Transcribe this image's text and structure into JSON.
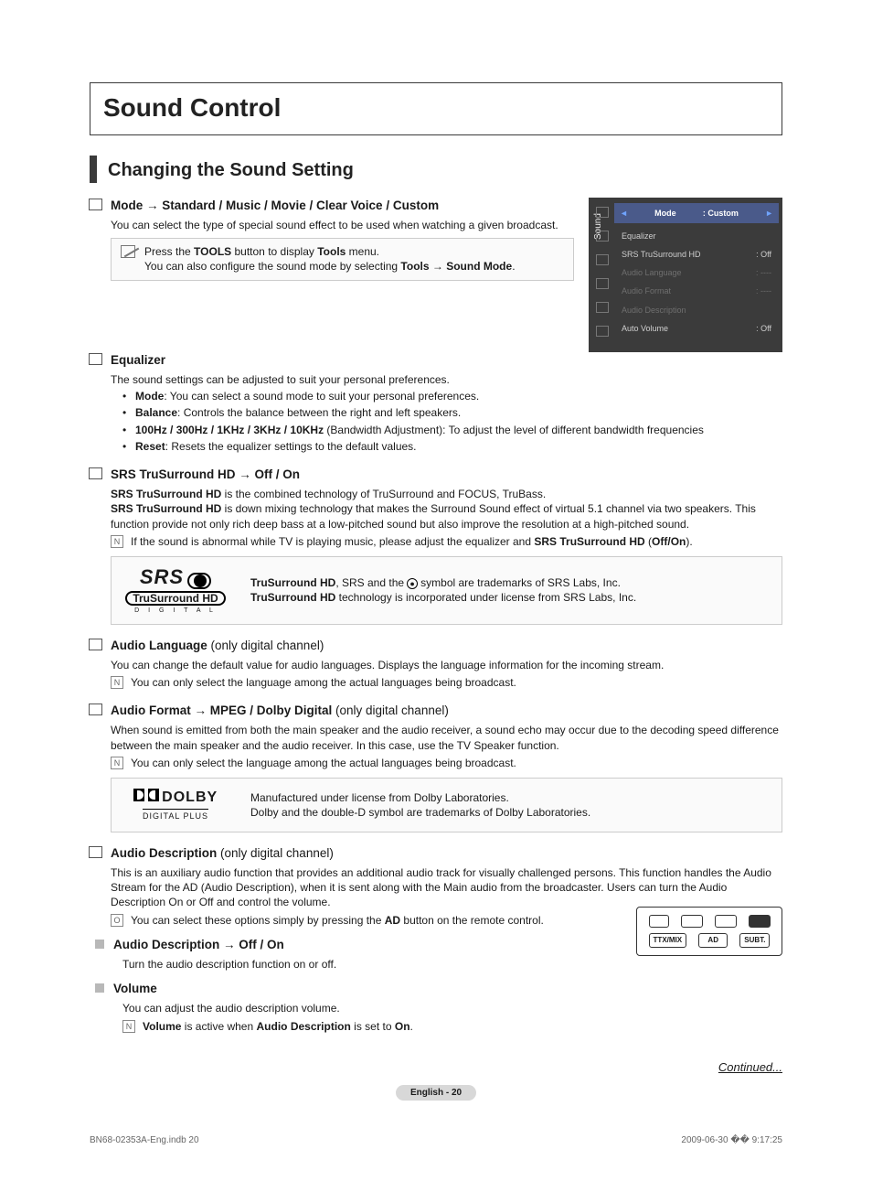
{
  "title": "Sound Control",
  "subtitle": "Changing the Sound Setting",
  "sections": {
    "mode": {
      "heading_bold": "Mode → Standard / Music / Movie / Clear Voice / Custom",
      "body": "You can select the type of special sound effect to be used when watching a given broadcast.",
      "tools_line1_pre": "Press the ",
      "tools_line1_bold": "TOOLS",
      "tools_line1_mid": " button to display ",
      "tools_line1_bold2": "Tools",
      "tools_line1_post": " menu.",
      "tools_line2_pre": "You can also configure the sound mode by selecting ",
      "tools_line2_bold": "Tools → Sound Mode",
      "tools_line2_post": "."
    },
    "equalizer": {
      "heading": "Equalizer",
      "body": "The sound settings can be adjusted to suit your personal preferences.",
      "bullets": [
        {
          "b": "Mode",
          "t": ": You can select a sound mode to suit your personal preferences."
        },
        {
          "b": "Balance",
          "t": ": Controls the balance between the right and left speakers."
        },
        {
          "b": "100Hz / 300Hz / 1KHz / 3KHz / 10KHz",
          "t": " (Bandwidth Adjustment): To adjust the level of different bandwidth frequencies"
        },
        {
          "b": "Reset",
          "t": ": Resets the equalizer settings to the default values."
        }
      ]
    },
    "srs": {
      "heading": "SRS TruSurround HD → Off / On",
      "line1_b": "SRS TruSurround HD",
      "line1_t": " is the combined technology of TruSurround and FOCUS, TruBass.",
      "line2_b": "SRS TruSurround HD",
      "line2_t": " is down mixing technology that makes the Surround Sound effect of virtual 5.1 channel via two speakers. This function provide not only rich deep bass at a low-pitched sound but also improve the resolution at a high-pitched sound.",
      "note_pre": "If the sound is abnormal while TV is playing music, please adjust the equalizer and ",
      "note_b": "SRS TruSurround HD",
      "note_paren": " (",
      "note_b2": "Off/On",
      "note_post": ").",
      "logo_top": "SRS",
      "logo_mid": "TruSurround HD",
      "logo_bot": "D I G I T A L",
      "logo_text1_b": "TruSurround HD",
      "logo_text1_t": ", SRS and the ",
      "logo_text1_sym": "●",
      "logo_text1_t2": " symbol are trademarks of SRS Labs, Inc.",
      "logo_text2_b": "TruSurround HD",
      "logo_text2_t": " technology is incorporated under license from SRS Labs, Inc."
    },
    "audiolang": {
      "heading_b": "Audio Language ",
      "heading_n": "(only digital channel)",
      "body": "You can change the default value for audio languages. Displays the language information for the incoming stream.",
      "note": "You can only select the language among the actual languages being broadcast."
    },
    "audiofmt": {
      "heading_b": "Audio Format → MPEG / Dolby Digital ",
      "heading_n": "(only digital channel)",
      "body": "When sound is emitted from both the main speaker and the audio receiver, a sound echo may occur due to the decoding speed difference between the main speaker and the audio receiver. In this case, use the TV Speaker function.",
      "note": "You can only select the language among the actual languages being broadcast.",
      "dolby_top": "DOLBY",
      "dolby_bot": "DIGITAL PLUS",
      "dolby_text1": "Manufactured under license from Dolby Laboratories.",
      "dolby_text2": "Dolby and the double-D symbol are trademarks of Dolby Laboratories."
    },
    "audiodesc": {
      "heading_b": "Audio Description ",
      "heading_n": "(only digital channel)",
      "body": "This is an auxiliary audio function that provides an additional audio track for visually challenged persons. This function handles the Audio Stream for the AD (Audio Description), when it is sent along with the Main audio from the broadcaster. Users can turn the Audio Description On or Off and control the volume.",
      "note_pre": "You can select these options simply by pressing the ",
      "note_b": "AD",
      "note_post": " button on the remote control.",
      "sub1_head": "Audio Description → Off / On",
      "sub1_body": "Turn the audio description function on or off.",
      "sub2_head": "Volume",
      "sub2_body": "You can adjust the audio description volume.",
      "sub2_note_b1": "Volume",
      "sub2_note_mid": " is active when ",
      "sub2_note_b2": "Audio Description",
      "sub2_note_mid2": " is set to ",
      "sub2_note_b3": "On",
      "sub2_note_post": "."
    }
  },
  "osd": {
    "side": "Sound",
    "rows": [
      {
        "k": "Mode",
        "v": ": Custom",
        "hl": true
      },
      {
        "k": "Equalizer",
        "v": ""
      },
      {
        "k": "SRS TruSurround HD",
        "v": ": Off"
      },
      {
        "k": "Audio Language",
        "v": ": ----",
        "dim": true
      },
      {
        "k": "Audio Format",
        "v": ": ----",
        "dim": true
      },
      {
        "k": "Audio Description",
        "v": "",
        "dim": true
      },
      {
        "k": "Auto Volume",
        "v": ": Off"
      }
    ]
  },
  "remote": {
    "btns": [
      "TTX/MIX",
      "AD",
      "SUBT."
    ]
  },
  "continued": "Continued...",
  "pager": "English - 20",
  "footer_left": "BN68-02353A-Eng.indb   20",
  "footer_right": "2009-06-30   �� 9:17:25"
}
